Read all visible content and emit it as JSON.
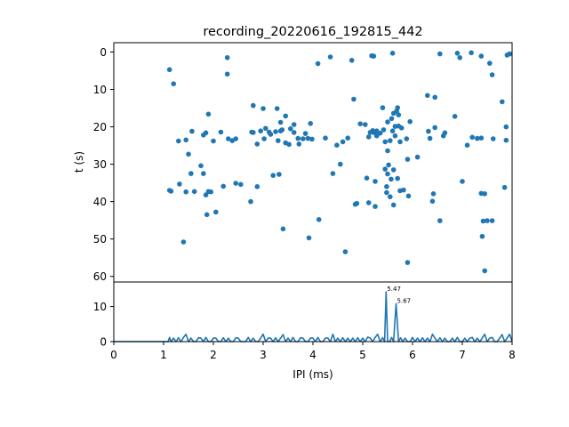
{
  "chart_data": [
    {
      "type": "scatter",
      "title": "recording_20220616_192815_442",
      "ylabel": "t (s)",
      "xlim": [
        0,
        8
      ],
      "ylim": [
        61.5,
        -2.5
      ],
      "y_inverted": true,
      "yticks": [
        "0",
        "10",
        "20",
        "30",
        "40",
        "50",
        "60"
      ],
      "color": "#1f77b4",
      "points": [
        [
          1.12,
          4.7
        ],
        [
          1.2,
          8.5
        ],
        [
          1.12,
          37.0
        ],
        [
          1.15,
          37.2
        ],
        [
          1.3,
          23.8
        ],
        [
          1.32,
          35.3
        ],
        [
          1.4,
          50.8
        ],
        [
          1.45,
          23.5
        ],
        [
          1.45,
          37.4
        ],
        [
          1.5,
          27.3
        ],
        [
          1.55,
          32.5
        ],
        [
          1.57,
          21.2
        ],
        [
          1.62,
          37.3
        ],
        [
          1.75,
          30.4
        ],
        [
          1.8,
          22.2
        ],
        [
          1.8,
          32.5
        ],
        [
          1.85,
          21.6
        ],
        [
          1.85,
          38.2
        ],
        [
          1.87,
          43.5
        ],
        [
          1.9,
          37.3
        ],
        [
          1.9,
          16.6
        ],
        [
          1.95,
          37.4
        ],
        [
          2.0,
          23.8
        ],
        [
          2.05,
          42.8
        ],
        [
          2.15,
          21.4
        ],
        [
          2.2,
          35.9
        ],
        [
          2.28,
          1.5
        ],
        [
          2.28,
          5.9
        ],
        [
          2.3,
          23.2
        ],
        [
          2.38,
          23.7
        ],
        [
          2.45,
          23.2
        ],
        [
          2.45,
          35.1
        ],
        [
          2.55,
          35.4
        ],
        [
          2.75,
          40.0
        ],
        [
          2.77,
          21.4
        ],
        [
          2.8,
          21.5
        ],
        [
          2.8,
          14.3
        ],
        [
          2.88,
          36.0
        ],
        [
          2.88,
          24.6
        ],
        [
          2.95,
          21.1
        ],
        [
          3.0,
          15.1
        ],
        [
          3.02,
          23.2
        ],
        [
          3.05,
          20.4
        ],
        [
          3.12,
          21.4
        ],
        [
          3.15,
          22.0
        ],
        [
          3.2,
          33.0
        ],
        [
          3.25,
          21.3
        ],
        [
          3.28,
          15.1
        ],
        [
          3.3,
          23.7
        ],
        [
          3.32,
          32.7
        ],
        [
          3.35,
          21.1
        ],
        [
          3.35,
          18.8
        ],
        [
          3.38,
          20.8
        ],
        [
          3.4,
          47.3
        ],
        [
          3.45,
          24.3
        ],
        [
          3.45,
          17.1
        ],
        [
          3.52,
          24.7
        ],
        [
          3.55,
          20.5
        ],
        [
          3.62,
          19.4
        ],
        [
          3.62,
          21.5
        ],
        [
          3.7,
          23.1
        ],
        [
          3.72,
          24.6
        ],
        [
          3.8,
          23.2
        ],
        [
          3.85,
          21.8
        ],
        [
          3.9,
          23.1
        ],
        [
          3.92,
          49.7
        ],
        [
          3.95,
          19.1
        ],
        [
          3.98,
          23.3
        ],
        [
          4.1,
          3.1
        ],
        [
          4.12,
          44.8
        ],
        [
          4.25,
          23.0
        ],
        [
          4.35,
          1.3
        ],
        [
          4.4,
          32.5
        ],
        [
          4.48,
          24.9
        ],
        [
          4.55,
          30.0
        ],
        [
          4.6,
          24.0
        ],
        [
          4.65,
          53.4
        ],
        [
          4.7,
          23.0
        ],
        [
          4.78,
          2.2
        ],
        [
          4.82,
          12.6
        ],
        [
          4.85,
          40.7
        ],
        [
          4.88,
          40.5
        ],
        [
          4.95,
          19.2
        ],
        [
          5.05,
          19.4
        ],
        [
          5.08,
          33.7
        ],
        [
          5.12,
          22.7
        ],
        [
          5.12,
          40.3
        ],
        [
          5.15,
          21.5
        ],
        [
          5.18,
          1.0
        ],
        [
          5.2,
          21.0
        ],
        [
          5.22,
          1.1
        ],
        [
          5.22,
          21.5
        ],
        [
          5.25,
          41.3
        ],
        [
          5.25,
          34.6
        ],
        [
          5.28,
          21.1
        ],
        [
          5.28,
          22.4
        ],
        [
          5.3,
          21.8
        ],
        [
          5.35,
          21.7
        ],
        [
          5.4,
          14.9
        ],
        [
          5.42,
          20.8
        ],
        [
          5.45,
          31.3
        ],
        [
          5.45,
          24.0
        ],
        [
          5.48,
          36.0
        ],
        [
          5.48,
          37.6
        ],
        [
          5.5,
          18.7
        ],
        [
          5.5,
          26.4
        ],
        [
          5.5,
          32.6
        ],
        [
          5.52,
          30.2
        ],
        [
          5.55,
          23.7
        ],
        [
          5.55,
          38.7
        ],
        [
          5.57,
          34.0
        ],
        [
          5.58,
          17.8
        ],
        [
          5.6,
          0.3
        ],
        [
          5.6,
          21.1
        ],
        [
          5.62,
          16.4
        ],
        [
          5.62,
          31.5
        ],
        [
          5.62,
          40.9
        ],
        [
          5.65,
          19.9
        ],
        [
          5.65,
          22.4
        ],
        [
          5.68,
          15.8
        ],
        [
          5.7,
          14.9
        ],
        [
          5.7,
          33.8
        ],
        [
          5.72,
          16.8
        ],
        [
          5.72,
          19.8
        ],
        [
          5.75,
          24.0
        ],
        [
          5.75,
          37.1
        ],
        [
          5.78,
          20.3
        ],
        [
          5.82,
          36.9
        ],
        [
          5.88,
          23.2
        ],
        [
          5.9,
          28.7
        ],
        [
          5.9,
          56.3
        ],
        [
          5.92,
          38.5
        ],
        [
          5.95,
          18.6
        ],
        [
          6.1,
          28.1
        ],
        [
          6.3,
          11.6
        ],
        [
          6.32,
          21.2
        ],
        [
          6.35,
          23.1
        ],
        [
          6.4,
          39.9
        ],
        [
          6.42,
          37.9
        ],
        [
          6.45,
          12.1
        ],
        [
          6.45,
          20.2
        ],
        [
          6.55,
          0.5
        ],
        [
          6.55,
          45.1
        ],
        [
          6.62,
          22.4
        ],
        [
          6.65,
          21.6
        ],
        [
          6.85,
          17.2
        ],
        [
          6.9,
          0.3
        ],
        [
          6.95,
          1.5
        ],
        [
          7.0,
          34.6
        ],
        [
          7.1,
          24.9
        ],
        [
          7.18,
          0.2
        ],
        [
          7.2,
          22.8
        ],
        [
          7.3,
          23.1
        ],
        [
          7.38,
          1.1
        ],
        [
          7.38,
          23.0
        ],
        [
          7.38,
          37.8
        ],
        [
          7.4,
          49.3
        ],
        [
          7.42,
          45.2
        ],
        [
          7.45,
          37.9
        ],
        [
          7.45,
          58.5
        ],
        [
          7.5,
          45.1
        ],
        [
          7.55,
          3.0
        ],
        [
          7.6,
          6.1
        ],
        [
          7.6,
          45.1
        ],
        [
          7.62,
          23.2
        ],
        [
          7.8,
          13.3
        ],
        [
          7.85,
          36.2
        ],
        [
          7.88,
          20.0
        ],
        [
          7.88,
          23.6
        ],
        [
          7.9,
          0.8
        ],
        [
          7.95,
          0.5
        ]
      ]
    },
    {
      "type": "line",
      "xlabel": "IPI (ms)",
      "xlim": [
        0,
        8
      ],
      "ylim": [
        0,
        17
      ],
      "xticks": [
        "0",
        "1",
        "2",
        "3",
        "4",
        "5",
        "6",
        "7",
        "8"
      ],
      "yticks": [
        "0",
        "10"
      ],
      "color": "#1f77b4",
      "x": [
        0,
        1.0,
        1.09,
        1.12,
        1.15,
        1.2,
        1.25,
        1.3,
        1.35,
        1.4,
        1.45,
        1.5,
        1.55,
        1.6,
        1.65,
        1.7,
        1.75,
        1.8,
        1.85,
        1.9,
        1.95,
        2.0,
        2.05,
        2.1,
        2.15,
        2.2,
        2.25,
        2.3,
        2.35,
        2.4,
        2.45,
        2.5,
        2.55,
        2.6,
        2.65,
        2.7,
        2.75,
        2.8,
        2.85,
        2.9,
        2.95,
        3.0,
        3.05,
        3.1,
        3.15,
        3.2,
        3.25,
        3.3,
        3.35,
        3.4,
        3.45,
        3.5,
        3.55,
        3.6,
        3.65,
        3.7,
        3.75,
        3.8,
        3.85,
        3.9,
        3.95,
        4.0,
        4.05,
        4.1,
        4.15,
        4.2,
        4.25,
        4.3,
        4.35,
        4.4,
        4.45,
        4.5,
        4.55,
        4.6,
        4.65,
        4.7,
        4.75,
        4.8,
        4.85,
        4.9,
        4.95,
        5.0,
        5.05,
        5.1,
        5.15,
        5.2,
        5.25,
        5.3,
        5.35,
        5.4,
        5.44,
        5.47,
        5.5,
        5.54,
        5.58,
        5.62,
        5.67,
        5.72,
        5.76,
        5.8,
        5.85,
        5.9,
        5.95,
        6.0,
        6.05,
        6.1,
        6.15,
        6.2,
        6.25,
        6.3,
        6.35,
        6.4,
        6.45,
        6.5,
        6.55,
        6.6,
        6.65,
        6.7,
        6.75,
        6.8,
        6.85,
        6.9,
        6.95,
        7.0,
        7.05,
        7.1,
        7.15,
        7.2,
        7.25,
        7.3,
        7.35,
        7.4,
        7.45,
        7.5,
        7.55,
        7.6,
        7.65,
        7.7,
        7.75,
        7.8,
        7.85,
        7.9,
        7.95,
        8.0
      ],
      "values": [
        0,
        0,
        0,
        1.2,
        0,
        1,
        0,
        1.1,
        0,
        1.2,
        2.1,
        0,
        1,
        0,
        0,
        1.1,
        1,
        0,
        1.2,
        0,
        0,
        1,
        1,
        0,
        0,
        1.1,
        0,
        1,
        0,
        0,
        1.1,
        1,
        0,
        0,
        0,
        1.2,
        0,
        1,
        0,
        0,
        1,
        2.1,
        0,
        1,
        1,
        0,
        1.1,
        0,
        1,
        2,
        0,
        1,
        0,
        1.2,
        0,
        0,
        1.1,
        1,
        0,
        0,
        1,
        1,
        0,
        1.2,
        0,
        0,
        1,
        1,
        0,
        2.1,
        0,
        1,
        0,
        1.1,
        0,
        1,
        0,
        1,
        0,
        1.1,
        0,
        1,
        0,
        1.3,
        1,
        0,
        1.2,
        2.1,
        0,
        1.1,
        0,
        14.2,
        0,
        0,
        1.2,
        0,
        10.8,
        0,
        1.1,
        0,
        1,
        0,
        0,
        1.2,
        0,
        1,
        0,
        1.1,
        0,
        1,
        0,
        2.1,
        1,
        0,
        1.1,
        0,
        1,
        0,
        0,
        1,
        0,
        1.2,
        0,
        0,
        1,
        0,
        1,
        1.2,
        0,
        1,
        0,
        1,
        2.1,
        0,
        1,
        1.2,
        0,
        0,
        1,
        2,
        0,
        1,
        2.1,
        0
      ],
      "annotations": [
        {
          "x": 5.47,
          "y": 14.2,
          "text": "5.47"
        },
        {
          "x": 5.67,
          "y": 10.8,
          "text": "5.67"
        }
      ]
    }
  ]
}
